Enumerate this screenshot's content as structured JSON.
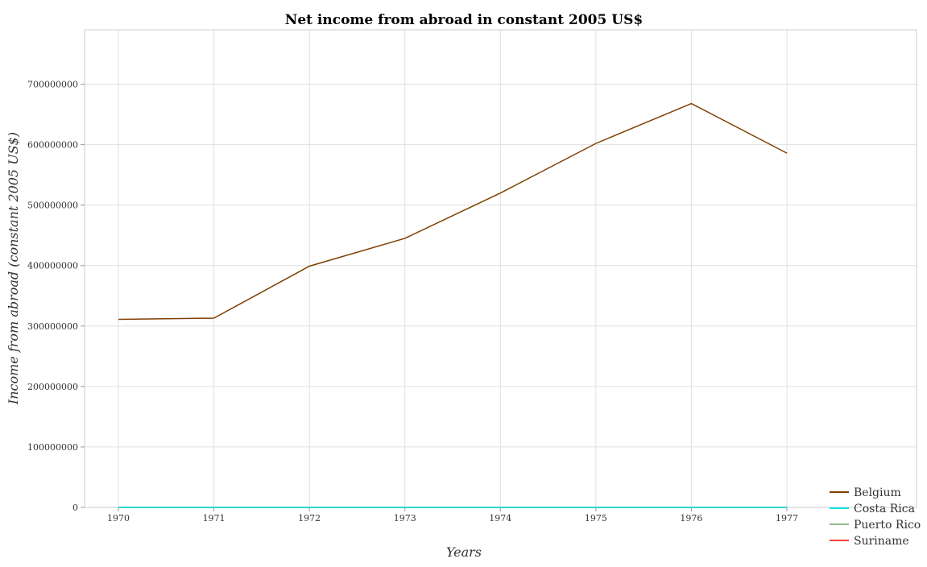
{
  "chart_data": {
    "type": "line",
    "title": "Net income from abroad in constant 2005 US$",
    "xlabel": "Years",
    "ylabel": "Income from abroad (constant 2005 US$)",
    "categories": [
      "1970",
      "1971",
      "1972",
      "1973",
      "1974",
      "1975",
      "1976",
      "1977"
    ],
    "ylim": [
      0,
      790000000
    ],
    "yticks": [
      0,
      100000000,
      200000000,
      300000000,
      400000000,
      500000000,
      600000000,
      700000000
    ],
    "ytick_labels": [
      "0",
      "100000000",
      "200000000",
      "300000000",
      "400000000",
      "500000000",
      "600000000",
      "700000000"
    ],
    "grid": true,
    "legend_position": "bottom-right",
    "series": [
      {
        "name": "Belgium",
        "color": "#7f3f00",
        "values": [
          311000000,
          313000000,
          399000000,
          445000000,
          520000000,
          602000000,
          668000000,
          586000000
        ]
      },
      {
        "name": "Costa Rica",
        "color": "#00e5e5",
        "values": [
          0,
          0,
          0,
          0,
          0,
          0,
          0,
          0
        ]
      },
      {
        "name": "Puerto Rico",
        "color": "#8fbc8f",
        "values": [
          0,
          0,
          0,
          0,
          0,
          0,
          0,
          0
        ]
      },
      {
        "name": "Suriname",
        "color": "#ff4040",
        "values": [
          0,
          0,
          0,
          0,
          0,
          0,
          0,
          0
        ]
      }
    ]
  }
}
